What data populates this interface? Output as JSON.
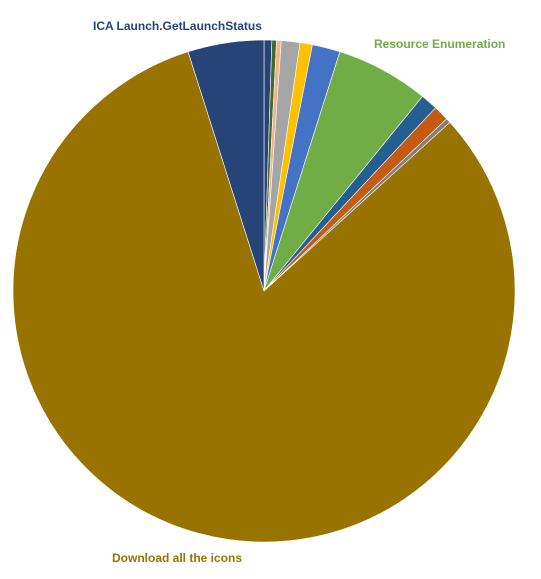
{
  "chart_data": {
    "type": "pie",
    "title": "",
    "legend": "none",
    "series": [
      {
        "values": [
          {
            "value": 0.5,
            "color": "#264478"
          },
          {
            "value": 0.3,
            "color": "#43682B"
          },
          {
            "value": 0.3,
            "color": "#F4B183"
          },
          {
            "value": 1.2,
            "color": "#A5A5A5"
          },
          {
            "value": 0.8,
            "color": "#FFC000"
          },
          {
            "value": 1.8,
            "color": "#4472C4"
          },
          {
            "label": "Resource Enumeration",
            "value": 6.0,
            "color": "#70AD47"
          },
          {
            "value": 1.1,
            "color": "#255E91"
          },
          {
            "value": 1.0,
            "color": "#C55A11"
          },
          {
            "value": 0.3,
            "color": "#7F7F7F"
          },
          {
            "label": "Download all the icons",
            "value": 82.0,
            "color": "#997300"
          },
          {
            "label": "ICA Launch.GetLaunchStatus",
            "value": 4.9,
            "color": "#264478"
          }
        ]
      }
    ]
  }
}
